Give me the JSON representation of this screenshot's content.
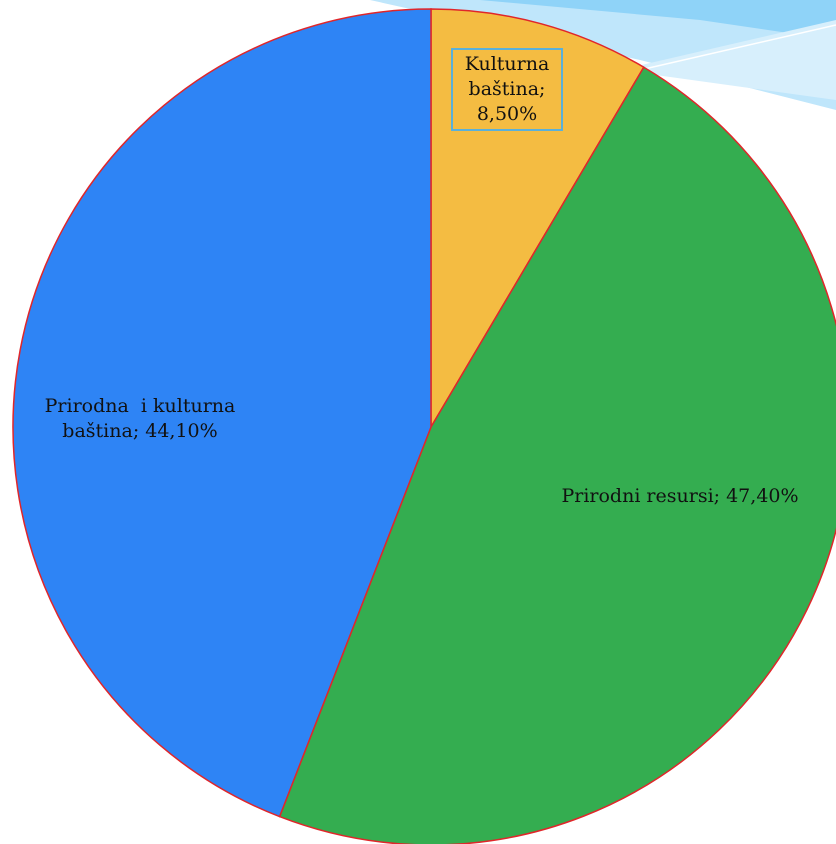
{
  "chart_data": {
    "type": "pie",
    "values": [
      8.5,
      47.4,
      44.1
    ],
    "value_labels": [
      "Kulturna baština; 8,50%",
      "Prirodni resursi; 47,40%",
      "Prirodna  i kulturna baština; 44,10%"
    ],
    "colors": [
      "#f4bc42",
      "#34ad50",
      "#2e84f5"
    ],
    "edge_color": "#e0262a"
  }
}
